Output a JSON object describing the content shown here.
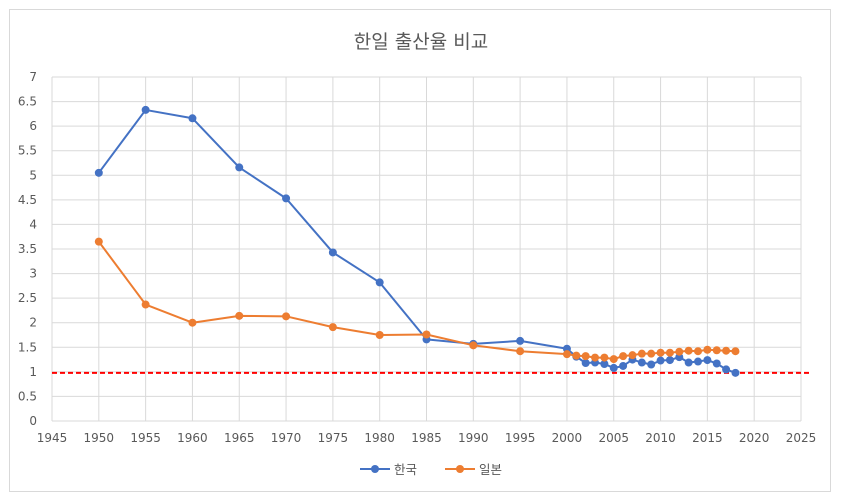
{
  "chart_data": {
    "type": "line",
    "title": "한일 출산율 비교",
    "xlabel": "",
    "ylabel": "",
    "xlim": [
      1945,
      2025
    ],
    "ylim": [
      0,
      7
    ],
    "x_ticks": [
      1945,
      1950,
      1955,
      1960,
      1965,
      1970,
      1975,
      1980,
      1985,
      1990,
      1995,
      2000,
      2005,
      2010,
      2015,
      2020,
      2025
    ],
    "y_ticks": [
      0,
      0.5,
      1,
      1.5,
      2,
      2.5,
      3,
      3.5,
      4,
      4.5,
      5,
      5.5,
      6,
      6.5,
      7
    ],
    "grid": true,
    "legend_position": "bottom",
    "reference_line": {
      "y": 0.98,
      "color": "#ff0000",
      "style": "dashed"
    },
    "series": [
      {
        "name": "한국",
        "color": "#4472c4",
        "x": [
          1950,
          1955,
          1960,
          1965,
          1970,
          1975,
          1980,
          1985,
          1990,
          1995,
          2000,
          2001,
          2002,
          2003,
          2004,
          2005,
          2006,
          2007,
          2008,
          2009,
          2010,
          2011,
          2012,
          2013,
          2014,
          2015,
          2016,
          2017,
          2018
        ],
        "y": [
          5.05,
          6.33,
          6.16,
          5.16,
          4.53,
          3.43,
          2.82,
          1.66,
          1.57,
          1.63,
          1.47,
          1.31,
          1.18,
          1.19,
          1.16,
          1.08,
          1.12,
          1.25,
          1.19,
          1.15,
          1.23,
          1.24,
          1.3,
          1.19,
          1.21,
          1.24,
          1.17,
          1.05,
          0.98
        ]
      },
      {
        "name": "일본",
        "color": "#ed7d31",
        "x": [
          1950,
          1955,
          1960,
          1965,
          1970,
          1975,
          1980,
          1985,
          1990,
          1995,
          2000,
          2001,
          2002,
          2003,
          2004,
          2005,
          2006,
          2007,
          2008,
          2009,
          2010,
          2011,
          2012,
          2013,
          2014,
          2015,
          2016,
          2017,
          2018
        ],
        "y": [
          3.65,
          2.37,
          2.0,
          2.14,
          2.13,
          1.91,
          1.75,
          1.76,
          1.54,
          1.42,
          1.36,
          1.33,
          1.32,
          1.29,
          1.29,
          1.26,
          1.32,
          1.34,
          1.37,
          1.37,
          1.39,
          1.39,
          1.41,
          1.43,
          1.42,
          1.45,
          1.44,
          1.43,
          1.42
        ]
      }
    ]
  }
}
